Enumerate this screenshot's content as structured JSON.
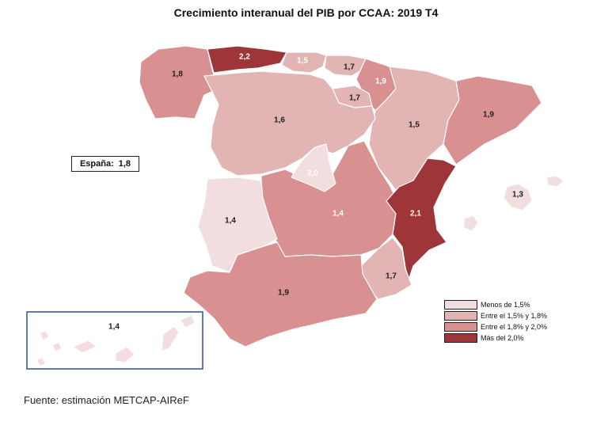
{
  "title": "Crecimiento interanual del PIB por CCAA: 2019 T4",
  "country": {
    "label": "España:",
    "value": "1,8"
  },
  "source": "Fuente: estimación METCAP-AIReF",
  "colors": {
    "low": "#f2dede",
    "mid_low": "#e3b4b4",
    "mid_high": "#d99090",
    "high": "#9e3538"
  },
  "legend": [
    {
      "label": "Menos de 1,5%",
      "color": "#f2dede"
    },
    {
      "label": "Entre el 1,5% y 1,8%",
      "color": "#e3b4b4"
    },
    {
      "label": "Entre el 1,8% y 2,0%",
      "color": "#d99090"
    },
    {
      "label": "Más del 2,0%",
      "color": "#9e3538"
    }
  ],
  "regions": [
    {
      "name": "Galicia",
      "value": "1,8"
    },
    {
      "name": "Asturias",
      "value": "2,2"
    },
    {
      "name": "Cantabria",
      "value": "1,5"
    },
    {
      "name": "País Vasco",
      "value": "1,7"
    },
    {
      "name": "Navarra",
      "value": "1,9"
    },
    {
      "name": "La Rioja",
      "value": "1,7"
    },
    {
      "name": "Aragón",
      "value": "1,5"
    },
    {
      "name": "Cataluña",
      "value": "1,9"
    },
    {
      "name": "Castilla y León",
      "value": "1,6"
    },
    {
      "name": "Madrid",
      "value": "2,0"
    },
    {
      "name": "Castilla-La Mancha",
      "value": "1,4"
    },
    {
      "name": "Extremadura",
      "value": "1,4"
    },
    {
      "name": "C. Valenciana",
      "value": "2,1"
    },
    {
      "name": "Murcia",
      "value": "1,7"
    },
    {
      "name": "Andalucía",
      "value": "1,9"
    },
    {
      "name": "Illes Balears",
      "value": "1,3"
    },
    {
      "name": "Canarias",
      "value": "1,4"
    }
  ]
}
